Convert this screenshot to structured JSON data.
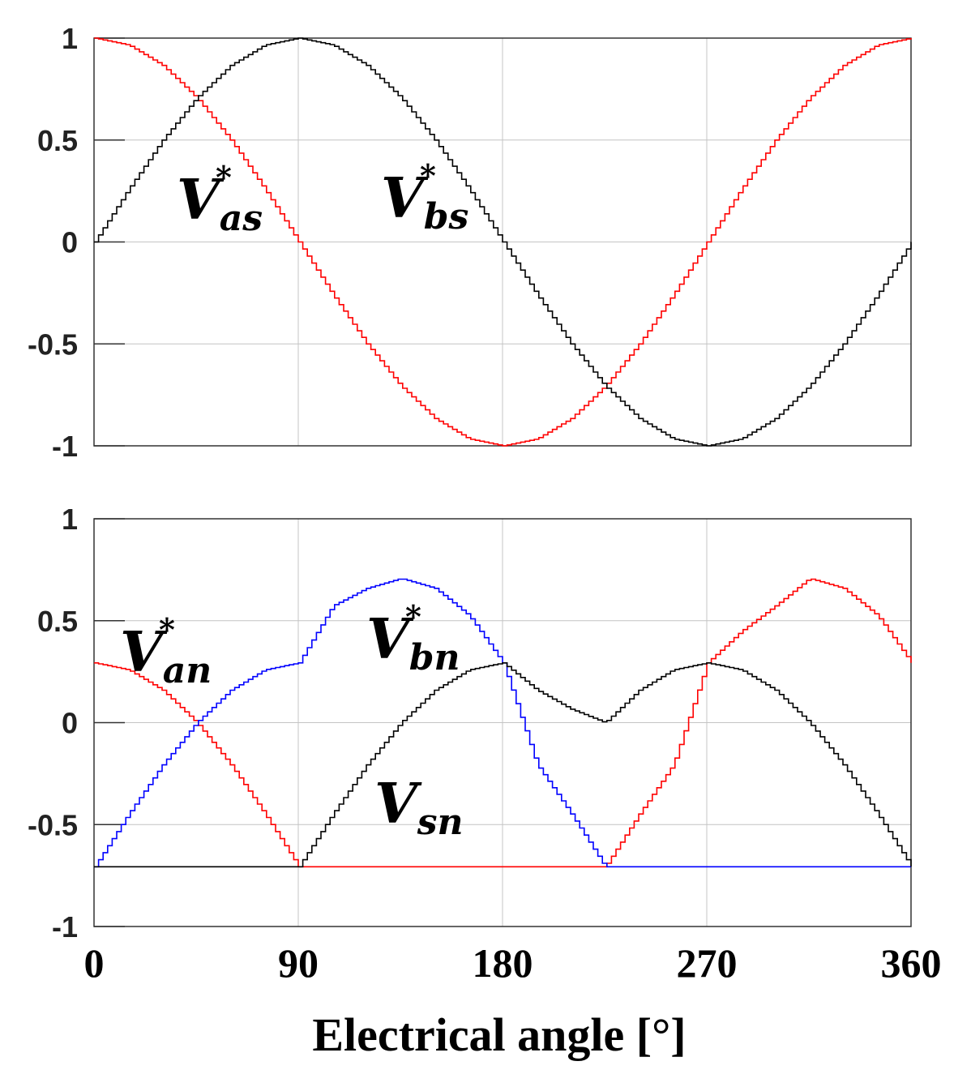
{
  "chart_data": [
    {
      "type": "line",
      "xlim": [
        0,
        360
      ],
      "ylim": [
        -1,
        1
      ],
      "yticks": [
        "1",
        "0.5",
        "0",
        "-0.5",
        "-1"
      ],
      "xticks": [
        0,
        90,
        180,
        270,
        360
      ],
      "grid": true,
      "step_size_deg": 2,
      "annotations": [
        {
          "base": "V",
          "sub": "as",
          "sup": "*"
        },
        {
          "base": "V",
          "sub": "bs",
          "sup": "*"
        }
      ],
      "series": [
        {
          "color": "#ff0000",
          "x": [
            0,
            15,
            30,
            45,
            60,
            75,
            90,
            105,
            120,
            135,
            150,
            165,
            180,
            195,
            210,
            225,
            240,
            255,
            270,
            285,
            300,
            315,
            330,
            345,
            360
          ],
          "values": [
            1,
            0.966,
            0.866,
            0.707,
            0.5,
            0.259,
            0,
            -0.259,
            -0.5,
            -0.707,
            -0.866,
            -0.966,
            -1,
            -0.966,
            -0.866,
            -0.707,
            -0.5,
            -0.259,
            0,
            0.259,
            0.5,
            0.707,
            0.866,
            0.966,
            1
          ]
        },
        {
          "color": "#000000",
          "x": [
            0,
            15,
            30,
            45,
            60,
            75,
            90,
            105,
            120,
            135,
            150,
            165,
            180,
            195,
            210,
            225,
            240,
            255,
            270,
            285,
            300,
            315,
            330,
            345,
            360
          ],
          "values": [
            0,
            0.259,
            0.5,
            0.707,
            0.866,
            0.966,
            1,
            0.966,
            0.866,
            0.707,
            0.5,
            0.259,
            0,
            -0.259,
            -0.5,
            -0.707,
            -0.866,
            -0.966,
            -1,
            -0.966,
            -0.866,
            -0.707,
            -0.5,
            -0.259,
            0
          ]
        }
      ]
    },
    {
      "type": "line",
      "xlim": [
        0,
        360
      ],
      "ylim": [
        -1,
        1
      ],
      "yticks": [
        "1",
        "0.5",
        "0",
        "-0.5",
        "-1"
      ],
      "xticks": [
        0,
        90,
        180,
        270,
        360
      ],
      "grid": true,
      "step_size_deg": 2,
      "annotations": [
        {
          "base": "V",
          "sub": "an",
          "sup": "*"
        },
        {
          "base": "V",
          "sub": "bn",
          "sup": "*"
        },
        {
          "base": "V",
          "sub": "sn",
          "sup": ""
        }
      ],
      "series": [
        {
          "color": "#ff0000",
          "x": [
            0,
            15,
            30,
            45,
            60,
            75,
            90,
            105,
            120,
            135,
            150,
            165,
            180,
            195,
            210,
            225,
            240,
            255,
            270,
            285,
            300,
            315,
            330,
            345,
            360
          ],
          "values": [
            0.293,
            0.259,
            0.159,
            0,
            -0.207,
            -0.448,
            -0.707,
            -0.707,
            -0.707,
            -0.707,
            -0.707,
            -0.707,
            -0.707,
            -0.707,
            -0.707,
            -0.707,
            -0.448,
            -0.207,
            0.293,
            0.448,
            0.573,
            0.707,
            0.659,
            0.525,
            0.293
          ]
        },
        {
          "color": "#0000ff",
          "x": [
            0,
            15,
            30,
            45,
            60,
            75,
            90,
            105,
            120,
            135,
            150,
            165,
            180,
            195,
            210,
            225,
            240,
            255,
            270,
            285,
            300,
            315,
            330,
            345,
            360
          ],
          "values": [
            -0.707,
            -0.448,
            -0.207,
            0,
            0.159,
            0.259,
            0.293,
            0.573,
            0.659,
            0.707,
            0.659,
            0.525,
            0.293,
            -0.207,
            -0.448,
            -0.707,
            -0.707,
            -0.707,
            -0.707,
            -0.707,
            -0.707,
            -0.707,
            -0.707,
            -0.707,
            -0.707
          ]
        },
        {
          "color": "#000000",
          "x": [
            0,
            15,
            30,
            45,
            60,
            75,
            90,
            105,
            120,
            135,
            150,
            165,
            180,
            195,
            210,
            225,
            240,
            255,
            270,
            285,
            300,
            315,
            330,
            345,
            360
          ],
          "values": [
            -0.707,
            -0.707,
            -0.707,
            -0.707,
            -0.707,
            -0.707,
            -0.707,
            -0.448,
            -0.207,
            0,
            0.159,
            0.259,
            0.293,
            0.159,
            0.066,
            0,
            0.159,
            0.259,
            0.293,
            0.259,
            0.159,
            0,
            -0.207,
            -0.448,
            -0.707
          ]
        }
      ]
    }
  ],
  "xlabel": "Electrical angle [°]"
}
